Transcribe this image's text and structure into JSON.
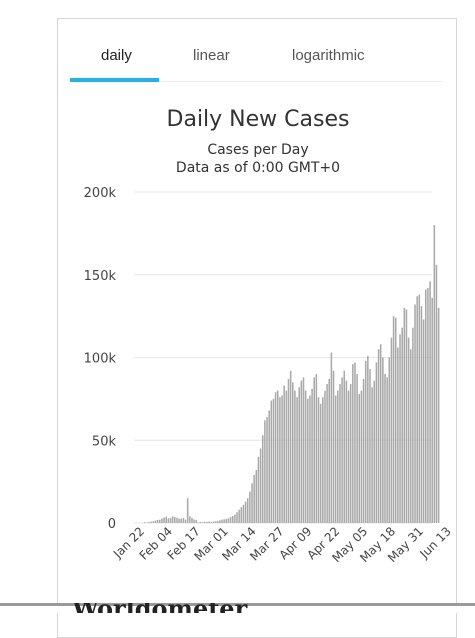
{
  "tabs": [
    {
      "label": "daily",
      "active": true
    },
    {
      "label": "linear",
      "active": false
    },
    {
      "label": "logarithmic",
      "active": false
    }
  ],
  "footer_text": "Worldometer",
  "colors": {
    "accent": "#26b0e7",
    "bar": "#a9a9a9",
    "grid": "#e6e6e6"
  },
  "chart_data": {
    "type": "bar",
    "title": "Daily New Cases",
    "subtitle": [
      "Cases per Day",
      "Data as of 0:00 GMT+0"
    ],
    "xlabel": "",
    "ylabel": "",
    "ylim": [
      0,
      200000
    ],
    "yticks": [
      {
        "value": 0,
        "label": "0"
      },
      {
        "value": 50000,
        "label": "50k"
      },
      {
        "value": 100000,
        "label": "100k"
      },
      {
        "value": 150000,
        "label": "150k"
      },
      {
        "value": 200000,
        "label": "200k"
      }
    ],
    "xtick_labels": [
      "Jan 22",
      "Feb 04",
      "Feb 17",
      "Mar 01",
      "Mar 14",
      "Mar 27",
      "Apr 09",
      "Apr 22",
      "May 05",
      "May 18",
      "May 31",
      "Jun 13"
    ],
    "xtick_interval_days": 13,
    "grid": true,
    "legend": false,
    "values": [
      500,
      200,
      600,
      800,
      1100,
      1500,
      1800,
      2000,
      2700,
      3300,
      3800,
      2800,
      3100,
      4000,
      3600,
      3200,
      2700,
      2600,
      3000,
      2000,
      15000,
      4000,
      3000,
      2200,
      1800,
      400,
      600,
      400,
      700,
      600,
      800,
      600,
      900,
      1000,
      1300,
      1600,
      2000,
      2200,
      2500,
      2800,
      3600,
      4200,
      5000,
      6500,
      8000,
      9500,
      11000,
      13000,
      15000,
      19000,
      24000,
      29000,
      32000,
      40000,
      45000,
      53000,
      62000,
      64000,
      68000,
      74000,
      75000,
      79000,
      80000,
      76000,
      77000,
      83000,
      80000,
      87000,
      92000,
      85000,
      80000,
      76000,
      82000,
      86000,
      88000,
      80000,
      75000,
      77000,
      81000,
      88000,
      90000,
      76000,
      72000,
      76000,
      80000,
      84000,
      87000,
      103000,
      92000,
      77000,
      80000,
      84000,
      88000,
      92000,
      86000,
      80000,
      84000,
      96000,
      97000,
      90000,
      78000,
      80000,
      87000,
      98000,
      101000,
      93000,
      82000,
      86000,
      97000,
      105000,
      108000,
      100000,
      90000,
      88000,
      100000,
      112000,
      125000,
      124000,
      106000,
      114000,
      118000,
      130000,
      129000,
      112000,
      105000,
      118000,
      132000,
      137000,
      138000,
      131000,
      123000,
      141000,
      142000,
      146000,
      136000,
      180000,
      156000,
      130000
    ]
  }
}
